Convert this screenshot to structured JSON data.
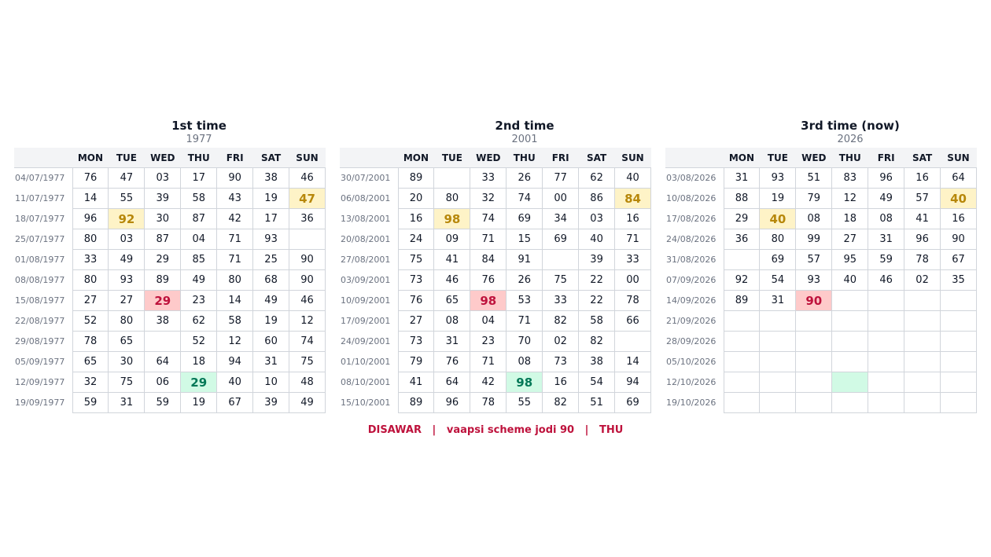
{
  "weekdays": [
    "MON",
    "TUE",
    "WED",
    "THU",
    "FRI",
    "SAT",
    "SUN"
  ],
  "panels": [
    {
      "title": "1st time",
      "year": "1977",
      "rows": [
        {
          "date": "04/07/1977",
          "cells": [
            "76",
            "47",
            "03",
            "17",
            "90",
            "38",
            "46"
          ]
        },
        {
          "date": "11/07/1977",
          "cells": [
            "14",
            "55",
            "39",
            "58",
            "43",
            "19",
            "47"
          ]
        },
        {
          "date": "18/07/1977",
          "cells": [
            "96",
            "92",
            "30",
            "87",
            "42",
            "17",
            "36"
          ]
        },
        {
          "date": "25/07/1977",
          "cells": [
            "80",
            "03",
            "87",
            "04",
            "71",
            "93",
            ""
          ]
        },
        {
          "date": "01/08/1977",
          "cells": [
            "33",
            "49",
            "29",
            "85",
            "71",
            "25",
            "90"
          ]
        },
        {
          "date": "08/08/1977",
          "cells": [
            "80",
            "93",
            "89",
            "49",
            "80",
            "68",
            "90"
          ]
        },
        {
          "date": "15/08/1977",
          "cells": [
            "27",
            "27",
            "29",
            "23",
            "14",
            "49",
            "46"
          ]
        },
        {
          "date": "22/08/1977",
          "cells": [
            "52",
            "80",
            "38",
            "62",
            "58",
            "19",
            "12"
          ]
        },
        {
          "date": "29/08/1977",
          "cells": [
            "78",
            "65",
            "",
            "52",
            "12",
            "60",
            "74"
          ]
        },
        {
          "date": "05/09/1977",
          "cells": [
            "65",
            "30",
            "64",
            "18",
            "94",
            "31",
            "75"
          ]
        },
        {
          "date": "12/09/1977",
          "cells": [
            "32",
            "75",
            "06",
            "29",
            "40",
            "10",
            "48"
          ]
        },
        {
          "date": "19/09/1977",
          "cells": [
            "59",
            "31",
            "59",
            "19",
            "67",
            "39",
            "49"
          ]
        }
      ],
      "highlights": [
        {
          "row": 1,
          "col": 6,
          "color": "yellow"
        },
        {
          "row": 2,
          "col": 1,
          "color": "yellow"
        },
        {
          "row": 6,
          "col": 2,
          "color": "red"
        },
        {
          "row": 10,
          "col": 3,
          "color": "green"
        }
      ]
    },
    {
      "title": "2nd time",
      "year": "2001",
      "rows": [
        {
          "date": "30/07/2001",
          "cells": [
            "89",
            "",
            "33",
            "26",
            "77",
            "62",
            "40"
          ]
        },
        {
          "date": "06/08/2001",
          "cells": [
            "20",
            "80",
            "32",
            "74",
            "00",
            "86",
            "84"
          ]
        },
        {
          "date": "13/08/2001",
          "cells": [
            "16",
            "98",
            "74",
            "69",
            "34",
            "03",
            "16"
          ]
        },
        {
          "date": "20/08/2001",
          "cells": [
            "24",
            "09",
            "71",
            "15",
            "69",
            "40",
            "71"
          ]
        },
        {
          "date": "27/08/2001",
          "cells": [
            "75",
            "41",
            "84",
            "91",
            "",
            "39",
            "33"
          ]
        },
        {
          "date": "03/09/2001",
          "cells": [
            "73",
            "46",
            "76",
            "26",
            "75",
            "22",
            "00"
          ]
        },
        {
          "date": "10/09/2001",
          "cells": [
            "76",
            "65",
            "98",
            "53",
            "33",
            "22",
            "78"
          ]
        },
        {
          "date": "17/09/2001",
          "cells": [
            "27",
            "08",
            "04",
            "71",
            "82",
            "58",
            "66"
          ]
        },
        {
          "date": "24/09/2001",
          "cells": [
            "73",
            "31",
            "23",
            "70",
            "02",
            "82",
            ""
          ]
        },
        {
          "date": "01/10/2001",
          "cells": [
            "79",
            "76",
            "71",
            "08",
            "73",
            "38",
            "14"
          ]
        },
        {
          "date": "08/10/2001",
          "cells": [
            "41",
            "64",
            "42",
            "98",
            "16",
            "54",
            "94"
          ]
        },
        {
          "date": "15/10/2001",
          "cells": [
            "89",
            "96",
            "78",
            "55",
            "82",
            "51",
            "69"
          ]
        }
      ],
      "highlights": [
        {
          "row": 1,
          "col": 6,
          "color": "yellow"
        },
        {
          "row": 2,
          "col": 1,
          "color": "yellow"
        },
        {
          "row": 6,
          "col": 2,
          "color": "red"
        },
        {
          "row": 10,
          "col": 3,
          "color": "green"
        }
      ]
    },
    {
      "title": "3rd time  (now)",
      "year": "2026",
      "rows": [
        {
          "date": "03/08/2026",
          "cells": [
            "31",
            "93",
            "51",
            "83",
            "96",
            "16",
            "64"
          ]
        },
        {
          "date": "10/08/2026",
          "cells": [
            "88",
            "19",
            "79",
            "12",
            "49",
            "57",
            "40"
          ]
        },
        {
          "date": "17/08/2026",
          "cells": [
            "29",
            "40",
            "08",
            "18",
            "08",
            "41",
            "16"
          ]
        },
        {
          "date": "24/08/2026",
          "cells": [
            "36",
            "80",
            "99",
            "27",
            "31",
            "96",
            "90"
          ]
        },
        {
          "date": "31/08/2026",
          "cells": [
            "",
            "69",
            "57",
            "95",
            "59",
            "78",
            "67"
          ]
        },
        {
          "date": "07/09/2026",
          "cells": [
            "92",
            "54",
            "93",
            "40",
            "46",
            "02",
            "35"
          ]
        },
        {
          "date": "14/09/2026",
          "cells": [
            "89",
            "31",
            "90",
            "",
            "",
            "",
            ""
          ]
        },
        {
          "date": "21/09/2026",
          "cells": [
            "",
            "",
            "",
            "",
            "",
            "",
            ""
          ]
        },
        {
          "date": "28/09/2026",
          "cells": [
            "",
            "",
            "",
            "",
            "",
            "",
            ""
          ]
        },
        {
          "date": "05/10/2026",
          "cells": [
            "",
            "",
            "",
            "",
            "",
            "",
            ""
          ]
        },
        {
          "date": "12/10/2026",
          "cells": [
            "",
            "",
            "",
            "",
            "",
            "",
            ""
          ]
        },
        {
          "date": "19/10/2026",
          "cells": [
            "",
            "",
            "",
            "",
            "",
            "",
            ""
          ]
        }
      ],
      "highlights": [
        {
          "row": 1,
          "col": 6,
          "color": "yellow"
        },
        {
          "row": 2,
          "col": 1,
          "color": "yellow"
        },
        {
          "row": 6,
          "col": 2,
          "color": "red"
        },
        {
          "row": 10,
          "col": 3,
          "color": "green"
        }
      ]
    }
  ],
  "caption": "DISAWAR   |   vaapsi scheme jodi 90   |   THU",
  "colors": {
    "yellow_bg": "#fef3c7",
    "yellow_text": "#b7870a",
    "red_bg": "#fecaca",
    "red_text": "#be123c",
    "green_bg": "#d1fae5",
    "green_text": "#047857"
  }
}
